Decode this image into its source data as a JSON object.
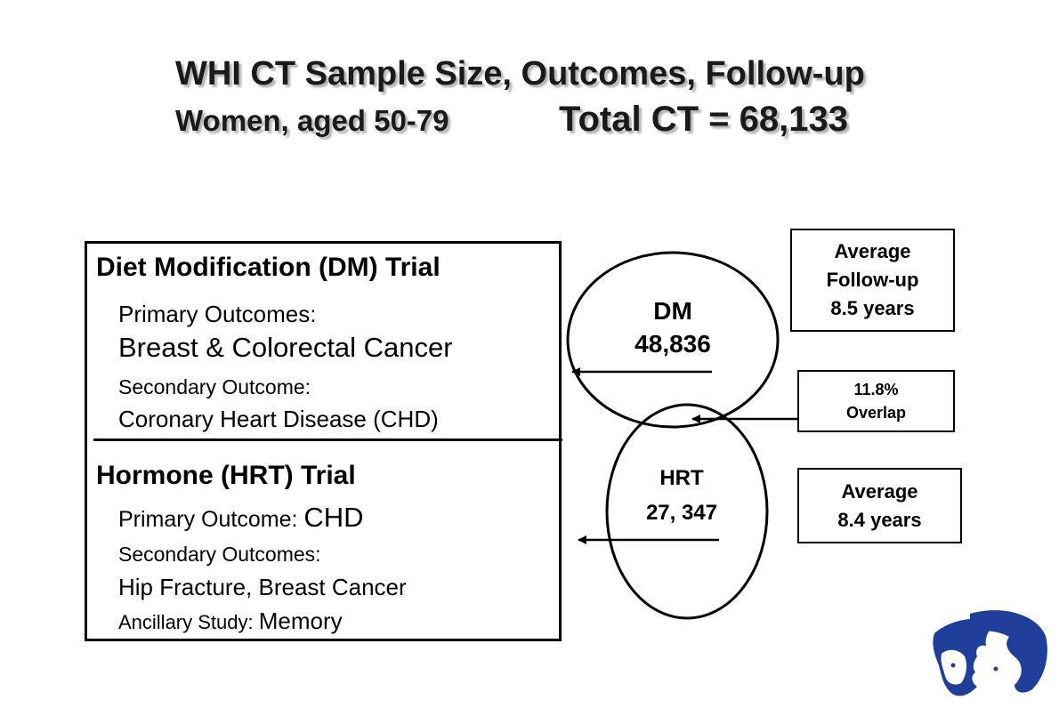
{
  "header": {
    "title": "WHI CT Sample Size, Outcomes, Follow-up",
    "subtitle": "Women, aged 50-79",
    "total": "Total CT = 68,133"
  },
  "dm_trial": {
    "heading": "Diet Modification (DM) Trial",
    "primary_label": "Primary Outcomes:",
    "primary_value": "Breast & Colorectal Cancer",
    "secondary_label": "Secondary Outcome:",
    "secondary_value": "Coronary Heart Disease (CHD)"
  },
  "hrt_trial": {
    "heading": "Hormone (HRT) Trial",
    "primary_label": "Primary Outcome: ",
    "primary_value": "CHD",
    "secondary_label": "Secondary Outcomes:",
    "secondary_value": "Hip Fracture, Breast Cancer",
    "ancillary_label": "Ancillary Study: ",
    "ancillary_value": "Memory"
  },
  "circles": {
    "dm": {
      "name": "DM",
      "count": "48,836"
    },
    "hrt": {
      "name": "HRT",
      "count": "27, 347"
    }
  },
  "side_boxes": {
    "dm_followup": {
      "line1": "Average",
      "line2": "Follow-up",
      "line3": "8.5 years"
    },
    "overlap": {
      "line1": "11.8%",
      "line2": "Overlap"
    },
    "hrt_followup": {
      "line1": "Average",
      "line2": "8.4 years"
    }
  },
  "logo": {
    "icon": "whi-faces-logo",
    "color": "#1f3f9a"
  }
}
